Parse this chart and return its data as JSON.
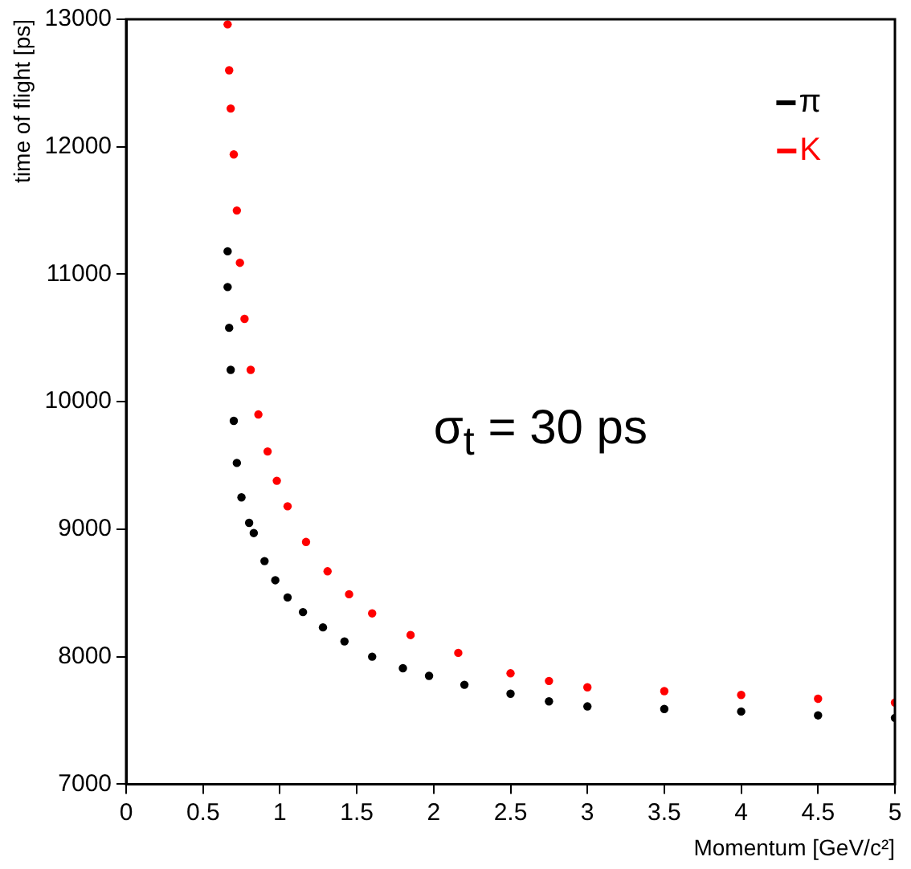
{
  "chart_data": {
    "type": "scatter",
    "xlabel": "Momentum [GeV/c²]",
    "ylabel": "time of flight [ps]",
    "xlim": [
      0,
      5
    ],
    "ylim": [
      7000,
      13000
    ],
    "xticks": [
      0,
      0.5,
      1,
      1.5,
      2,
      2.5,
      3,
      3.5,
      4,
      4.5,
      5
    ],
    "yticks": [
      7000,
      8000,
      9000,
      10000,
      11000,
      12000,
      13000
    ],
    "legend": "top right",
    "marker": "circle",
    "grid": false,
    "annotations": [
      {
        "text": "σ$_{t}$ = 30 ps"
      }
    ],
    "series": [
      {
        "name": "π",
        "color": "#000000",
        "x": [
          0.66,
          0.66,
          0.67,
          0.68,
          0.7,
          0.72,
          0.75,
          0.8,
          0.83,
          0.9,
          0.97,
          1.05,
          1.15,
          1.28,
          1.42,
          1.6,
          1.8,
          1.97,
          2.2,
          2.5,
          2.75,
          3,
          3.5,
          4,
          4.5,
          5
        ],
        "values": [
          11180,
          10900,
          10580,
          10250,
          9850,
          9520,
          9250,
          9050,
          8970,
          8750,
          8600,
          8465,
          8350,
          8230,
          8120,
          8000,
          7910,
          7850,
          7780,
          7710,
          7650,
          7610,
          7590,
          7570,
          7540,
          7520
        ]
      },
      {
        "name": "K",
        "color": "#ff0000",
        "x": [
          0.66,
          0.67,
          0.68,
          0.7,
          0.72,
          0.74,
          0.77,
          0.81,
          0.86,
          0.92,
          0.98,
          1.05,
          1.17,
          1.31,
          1.45,
          1.6,
          1.85,
          2.16,
          2.5,
          2.75,
          3,
          3.5,
          4,
          4.5,
          5
        ],
        "values": [
          12960,
          12600,
          12300,
          11940,
          11500,
          11090,
          10650,
          10250,
          9900,
          9610,
          9380,
          9180,
          8900,
          8670,
          8490,
          8340,
          8170,
          8030,
          7870,
          7810,
          7760,
          7730,
          7700,
          7670,
          7640
        ]
      }
    ]
  }
}
